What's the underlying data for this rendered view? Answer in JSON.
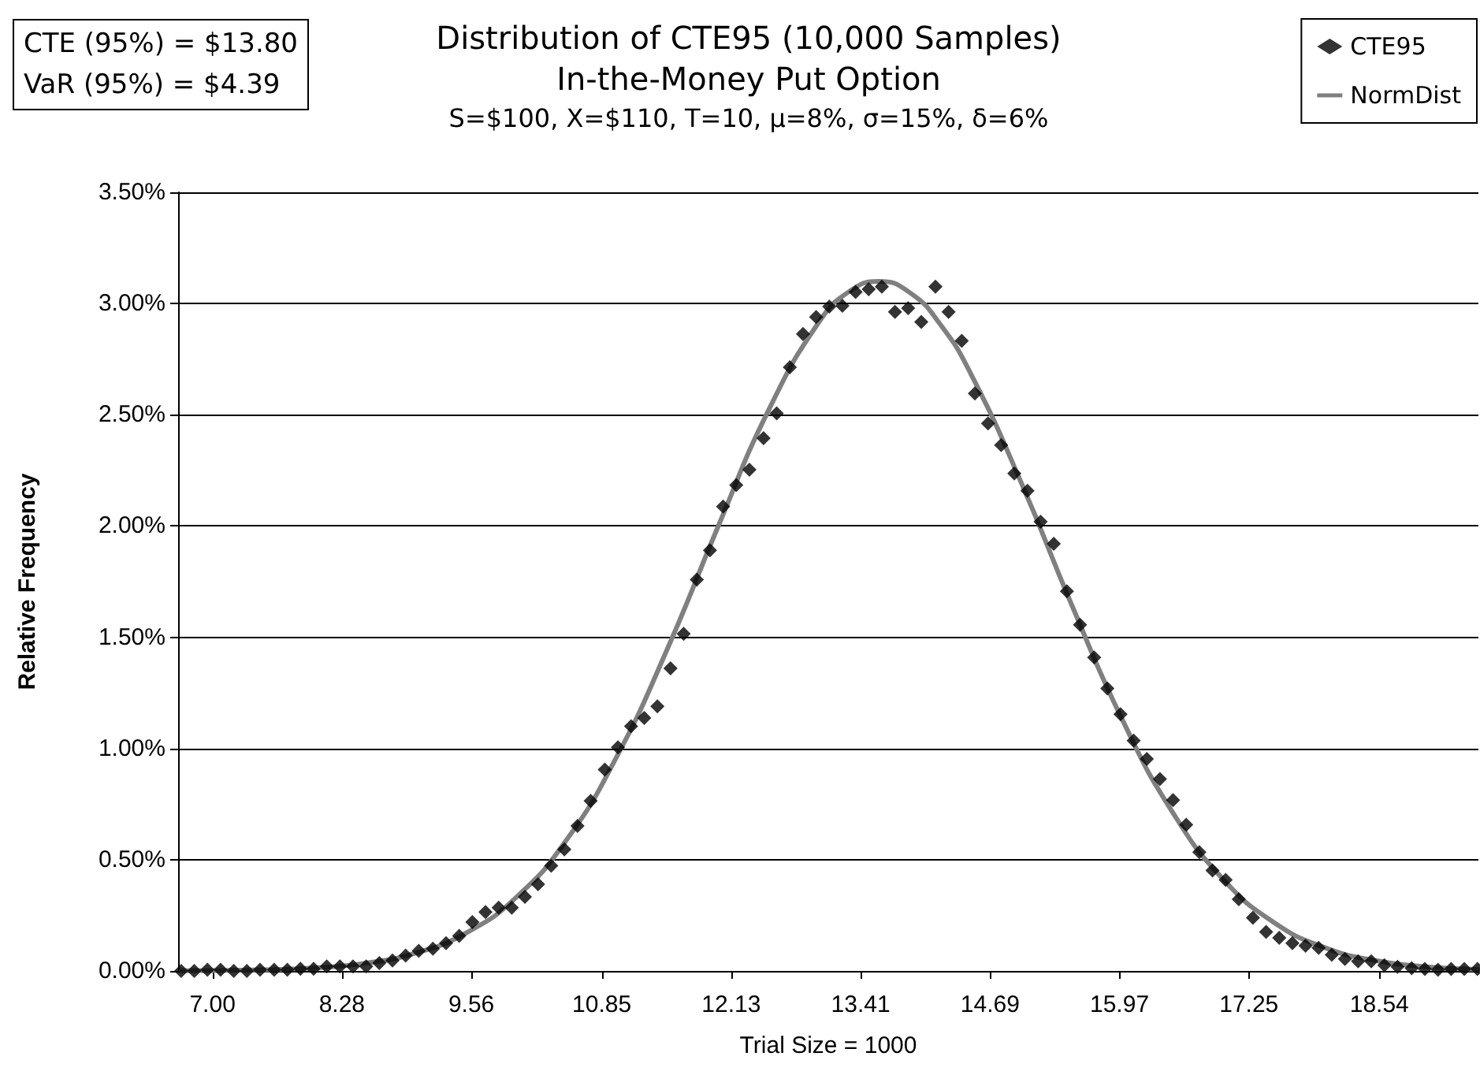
{
  "chart_data": {
    "type": "scatter",
    "title": "Distribution of CTE95 (10,000 Samples)\nIn-the-Money Put Option",
    "subtitle": "S=$100, X=$110, T=10, μ=8%, σ=15%, δ=6%",
    "xlabel": "Trial Size = 1000",
    "ylabel": "Relative Frequency",
    "annotations": [
      "CTE (95%) = $13.80",
      "VaR (95%) = $4.39"
    ],
    "xlim": [
      6.66,
      19.52
    ],
    "xticks": [
      {
        "value": 7,
        "label": "7.00"
      },
      8.28,
      9.56,
      10.85,
      12.13,
      13.41,
      14.69,
      15.97,
      17.25,
      18.54
    ],
    "ylim": [
      0,
      3.5
    ],
    "yticks": [
      {
        "value": 0,
        "label": "0.00%"
      },
      {
        "value": 0.5,
        "label": "0.50%"
      },
      {
        "value": 1,
        "label": "1.00%"
      },
      {
        "value": 1.5,
        "label": "1.50%"
      },
      {
        "value": 2,
        "label": "2.00%"
      },
      {
        "value": 2.5,
        "label": "2.50%"
      },
      {
        "value": 3,
        "label": "3.00%"
      },
      {
        "value": 3.5,
        "label": "3.50%"
      }
    ],
    "grid": "y",
    "legend": "top right",
    "series": [
      {
        "name": "CTE95",
        "marker": "diamond",
        "color": "#000000",
        "x": [
          6.69,
          6.82,
          6.95,
          7.08,
          7.21,
          7.34,
          7.47,
          7.61,
          7.74,
          7.87,
          8.0,
          8.13,
          8.26,
          8.39,
          8.52,
          8.65,
          8.78,
          8.91,
          9.04,
          9.18,
          9.31,
          9.44,
          9.57,
          9.7,
          9.83,
          9.96,
          10.09,
          10.22,
          10.35,
          10.48,
          10.61,
          10.74,
          10.88,
          11.01,
          11.14,
          11.27,
          11.4,
          11.53,
          11.66,
          11.79,
          11.92,
          12.05,
          12.18,
          12.31,
          12.45,
          12.58,
          12.71,
          12.84,
          12.97,
          13.1,
          13.23,
          13.36,
          13.49,
          13.62,
          13.75,
          13.88,
          14.01,
          14.15,
          14.28,
          14.41,
          14.54,
          14.67,
          14.8,
          14.93,
          15.06,
          15.19,
          15.32,
          15.45,
          15.58,
          15.72,
          15.85,
          15.98,
          16.11,
          16.24,
          16.37,
          16.5,
          16.63,
          16.76,
          16.89,
          17.02,
          17.15,
          17.29,
          17.42,
          17.55,
          17.68,
          17.81,
          17.94,
          18.07,
          18.2,
          18.33,
          18.46,
          18.59,
          18.72,
          18.86,
          18.99,
          19.12,
          19.25,
          19.38,
          19.51
        ],
        "values": [
          0,
          0,
          0.005,
          0.005,
          0,
          0,
          0.005,
          0.005,
          0.005,
          0.01,
          0.01,
          0.02,
          0.02,
          0.02,
          0.02,
          0.035,
          0.047,
          0.069,
          0.09,
          0.1,
          0.125,
          0.158,
          0.22,
          0.265,
          0.284,
          0.284,
          0.333,
          0.39,
          0.473,
          0.546,
          0.652,
          0.764,
          0.905,
          1.005,
          1.1,
          1.137,
          1.189,
          1.36,
          1.515,
          1.759,
          1.891,
          2.087,
          2.184,
          2.253,
          2.395,
          2.506,
          2.714,
          2.863,
          2.939,
          2.986,
          2.99,
          3.052,
          3.064,
          3.076,
          2.962,
          2.979,
          2.917,
          3.076,
          2.962,
          2.832,
          2.596,
          2.461,
          2.364,
          2.236,
          2.158,
          2.019,
          1.92,
          1.707,
          1.556,
          1.409,
          1.27,
          1.154,
          1.035,
          0.953,
          0.863,
          0.768,
          0.657,
          0.534,
          0.452,
          0.409,
          0.322,
          0.239,
          0.175,
          0.149,
          0.125,
          0.113,
          0.104,
          0.073,
          0.054,
          0.043,
          0.043,
          0.026,
          0.019,
          0.012,
          0.009,
          0.005,
          0.009,
          0.009,
          0.009
        ]
      },
      {
        "name": "NormDist",
        "type": "line",
        "marker": "none",
        "line_style": "solid",
        "color": "#808080",
        "x": [
          6.69,
          7.5,
          8.0,
          8.5,
          9.0,
          9.5,
          10.0,
          10.5,
          11.0,
          11.5,
          12.0,
          12.5,
          13.0,
          13.3,
          13.59,
          13.9,
          14.2,
          14.5,
          15.0,
          15.5,
          16.0,
          16.5,
          17.0,
          17.5,
          18.0,
          18.5,
          19.0,
          19.51
        ],
        "values": [
          0.001,
          0.005,
          0.013,
          0.034,
          0.079,
          0.169,
          0.329,
          0.588,
          0.965,
          1.449,
          1.997,
          2.521,
          2.918,
          3.055,
          3.1,
          3.048,
          2.905,
          2.684,
          2.193,
          1.643,
          1.128,
          0.71,
          0.41,
          0.217,
          0.105,
          0.047,
          0.019,
          0.007
        ]
      }
    ]
  }
}
